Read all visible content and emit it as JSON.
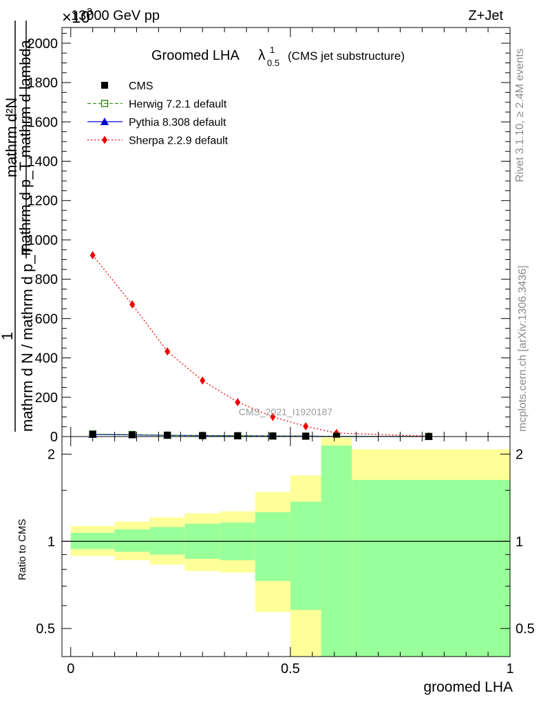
{
  "header": {
    "left": "13000 GeV pp",
    "right": "Z+Jet",
    "exponent": "×10",
    "exponent_power": "3"
  },
  "title": {
    "main": "Groomed LHA",
    "lambda": "λ",
    "sup": "1",
    "sub": "0.5",
    "suffix": "(CMS jet substructure)"
  },
  "side_labels": {
    "rivet": "Rivet 3.1.10, ≥ 2.4M events",
    "mcplots": "mcplots.cern.ch [arXiv:1306.3436]"
  },
  "watermark": "CMS_2021_I1920187",
  "ylabel": {
    "top_frac": "mathrm d²N",
    "top_den": "mathrm d p_T mathrm d lambda",
    "one": "1",
    "bottom": "mathrm d N / mathrm d p_T"
  },
  "legend": [
    {
      "name": "CMS",
      "color": "#000000",
      "marker": "square"
    },
    {
      "name": "Herwig 7.2.1 default",
      "color": "#3f8f1f",
      "marker": "open-square",
      "dash": "dashed"
    },
    {
      "name": "Pythia 8.308 default",
      "color": "#0000cc",
      "marker": "triangle",
      "dash": "solid"
    },
    {
      "name": "Sherpa 2.2.9 default",
      "color": "#ee0000",
      "marker": "diamond",
      "dash": "dotted"
    }
  ],
  "chart_data": [
    {
      "type": "line",
      "x": [
        0.05,
        0.14,
        0.22,
        0.3,
        0.38,
        0.46,
        0.535,
        0.605,
        0.815
      ],
      "bin_edges": [
        0.0,
        0.1,
        0.18,
        0.26,
        0.34,
        0.42,
        0.5,
        0.57,
        0.64,
        1.0
      ],
      "series": [
        {
          "name": "CMS",
          "values": [
            12,
            9,
            7,
            5,
            4,
            3,
            2,
            1,
            0.5
          ]
        },
        {
          "name": "Herwig 7.2.1 default",
          "values": [
            13,
            10,
            7,
            5,
            4,
            3,
            2,
            1,
            0.5
          ]
        },
        {
          "name": "Pythia 8.308 default",
          "values": [
            11,
            9,
            6,
            5,
            4,
            3,
            2,
            1,
            0.5
          ]
        },
        {
          "name": "Sherpa 2.2.9 default",
          "values": [
            922,
            672,
            433,
            285,
            175,
            100,
            52,
            18,
            2
          ]
        }
      ],
      "ylim": [
        0,
        2080
      ],
      "xlim": [
        -0.02,
        1.0
      ],
      "yticks": [
        0,
        200,
        400,
        600,
        800,
        1000,
        1200,
        1400,
        1600,
        1800,
        2000
      ],
      "xlabel": "",
      "ylabel": "mathrm d N / mathrm d p_T"
    },
    {
      "type": "area",
      "xlabel": "groomed LHA",
      "ylabel": "Ratio to CMS",
      "bin_edges": [
        0.0,
        0.1,
        0.18,
        0.26,
        0.34,
        0.42,
        0.5,
        0.57,
        0.64,
        1.0
      ],
      "inner_band": [
        [
          0.94,
          1.07
        ],
        [
          0.92,
          1.1
        ],
        [
          0.9,
          1.12
        ],
        [
          0.87,
          1.15
        ],
        [
          0.86,
          1.16
        ],
        [
          0.73,
          1.26
        ],
        [
          0.58,
          1.37
        ],
        [
          0.33,
          2.14
        ],
        [
          0.36,
          1.63
        ]
      ],
      "outer_band": [
        [
          0.89,
          1.13
        ],
        [
          0.86,
          1.17
        ],
        [
          0.83,
          1.21
        ],
        [
          0.79,
          1.25
        ],
        [
          0.78,
          1.27
        ],
        [
          0.57,
          1.48
        ],
        [
          0.33,
          1.69
        ],
        [
          0.33,
          2.28
        ],
        [
          0.37,
          2.08
        ]
      ],
      "reference": 1.0,
      "ylim": [
        0.4,
        2.3
      ],
      "log_y": true,
      "yticks": [
        0.5,
        1,
        2
      ],
      "xticks": [
        0,
        0.5,
        1
      ],
      "band_colors": {
        "inner": "#99ff99",
        "outer": "#ffff99"
      }
    }
  ]
}
